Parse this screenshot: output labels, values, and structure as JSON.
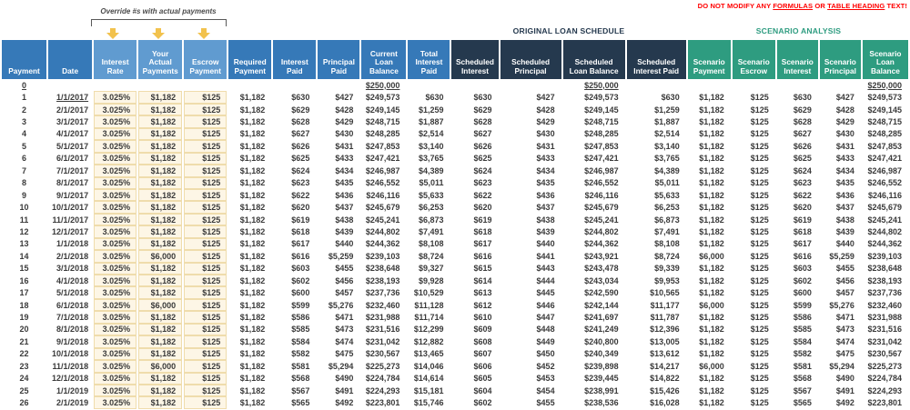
{
  "annotations": {
    "warning": {
      "prefix": "DO NOT MODIFY ANY ",
      "formulas": "FORMULAS",
      "middle": " OR ",
      "table_heading": "TABLE HEADING",
      "suffix": " TEXT!"
    },
    "override_note": "Override #s with actual payments",
    "override_arrow_icons": [
      "down-arrow-icon",
      "down-arrow-icon",
      "down-arrow-icon"
    ]
  },
  "sections": {
    "original": "ORIGINAL LOAN SCHEDULE",
    "scenario": "SCENARIO ANALYSIS"
  },
  "colors": {
    "header_blue": "#3679B8",
    "header_light_blue": "#609BD0",
    "header_navy": "#25394E",
    "header_teal": "#2E9C80",
    "highlight_bg": "#FDF6E6",
    "highlight_border": "#EFDCAC",
    "warning_red": "#FF0000",
    "arrow_gold": "#F2C24D"
  },
  "columns": [
    {
      "key": "payment",
      "label": "Payment",
      "group": "blue",
      "align": "center"
    },
    {
      "key": "date",
      "label": "Date",
      "group": "blue",
      "align": "right"
    },
    {
      "key": "interest-rate",
      "label": "Interest\nRate",
      "group": "lightblue",
      "align": "right"
    },
    {
      "key": "actual-payments",
      "label": "Your\nActual\nPayments",
      "group": "lightblue",
      "align": "right"
    },
    {
      "key": "escrow-payment",
      "label": "Escrow\nPayment",
      "group": "lightblue",
      "align": "right"
    },
    {
      "key": "required-payment",
      "label": "Required\nPayment",
      "group": "blue",
      "align": "right"
    },
    {
      "key": "interest-paid",
      "label": "Interest\nPaid",
      "group": "blue",
      "align": "right"
    },
    {
      "key": "principal-paid",
      "label": "Principal\nPaid",
      "group": "blue",
      "align": "right"
    },
    {
      "key": "current-loan-balance",
      "label": "Current\nLoan\nBalance",
      "group": "blue",
      "align": "right"
    },
    {
      "key": "total-interest-paid",
      "label": "Total\nInterest\nPaid",
      "group": "blue",
      "align": "right"
    },
    {
      "key": "scheduled-interest",
      "label": "Scheduled\nInterest",
      "group": "navy",
      "align": "right"
    },
    {
      "key": "scheduled-principal",
      "label": "Scheduled\nPrincipal",
      "group": "navy",
      "align": "right"
    },
    {
      "key": "scheduled-loan-balance",
      "label": "Scheduled\nLoan Balance",
      "group": "navy",
      "align": "right"
    },
    {
      "key": "scheduled-interest-paid",
      "label": "Scheduled\nInterest Paid",
      "group": "navy",
      "align": "right"
    },
    {
      "key": "scenario-payment",
      "label": "Scenario\nPayment",
      "group": "teal",
      "align": "right"
    },
    {
      "key": "scenario-escrow",
      "label": "Scenario\nEscrow",
      "group": "teal",
      "align": "right"
    },
    {
      "key": "scenario-interest",
      "label": "Scenario\nInterest",
      "group": "teal",
      "align": "right"
    },
    {
      "key": "scenario-principal",
      "label": "Scenario\nPrincipal",
      "group": "teal",
      "align": "right"
    },
    {
      "key": "scenario-loan-balance",
      "label": "Scenario\nLoan\nBalance",
      "group": "teal",
      "align": "right"
    }
  ],
  "rows": [
    [
      "0",
      "",
      "",
      "",
      "",
      "",
      "",
      "",
      "$250,000",
      "",
      "",
      "",
      "$250,000",
      "",
      "",
      "",
      "",
      "",
      "$250,000"
    ],
    [
      "1",
      "1/1/2017",
      "3.025%",
      "$1,182",
      "$125",
      "$1,182",
      "$630",
      "$427",
      "$249,573",
      "$630",
      "$630",
      "$427",
      "$249,573",
      "$630",
      "$1,182",
      "$125",
      "$630",
      "$427",
      "$249,573"
    ],
    [
      "2",
      "2/1/2017",
      "3.025%",
      "$1,182",
      "$125",
      "$1,182",
      "$629",
      "$428",
      "$249,145",
      "$1,259",
      "$629",
      "$428",
      "$249,145",
      "$1,259",
      "$1,182",
      "$125",
      "$629",
      "$428",
      "$249,145"
    ],
    [
      "3",
      "3/1/2017",
      "3.025%",
      "$1,182",
      "$125",
      "$1,182",
      "$628",
      "$429",
      "$248,715",
      "$1,887",
      "$628",
      "$429",
      "$248,715",
      "$1,887",
      "$1,182",
      "$125",
      "$628",
      "$429",
      "$248,715"
    ],
    [
      "4",
      "4/1/2017",
      "3.025%",
      "$1,182",
      "$125",
      "$1,182",
      "$627",
      "$430",
      "$248,285",
      "$2,514",
      "$627",
      "$430",
      "$248,285",
      "$2,514",
      "$1,182",
      "$125",
      "$627",
      "$430",
      "$248,285"
    ],
    [
      "5",
      "5/1/2017",
      "3.025%",
      "$1,182",
      "$125",
      "$1,182",
      "$626",
      "$431",
      "$247,853",
      "$3,140",
      "$626",
      "$431",
      "$247,853",
      "$3,140",
      "$1,182",
      "$125",
      "$626",
      "$431",
      "$247,853"
    ],
    [
      "6",
      "6/1/2017",
      "3.025%",
      "$1,182",
      "$125",
      "$1,182",
      "$625",
      "$433",
      "$247,421",
      "$3,765",
      "$625",
      "$433",
      "$247,421",
      "$3,765",
      "$1,182",
      "$125",
      "$625",
      "$433",
      "$247,421"
    ],
    [
      "7",
      "7/1/2017",
      "3.025%",
      "$1,182",
      "$125",
      "$1,182",
      "$624",
      "$434",
      "$246,987",
      "$4,389",
      "$624",
      "$434",
      "$246,987",
      "$4,389",
      "$1,182",
      "$125",
      "$624",
      "$434",
      "$246,987"
    ],
    [
      "8",
      "8/1/2017",
      "3.025%",
      "$1,182",
      "$125",
      "$1,182",
      "$623",
      "$435",
      "$246,552",
      "$5,011",
      "$623",
      "$435",
      "$246,552",
      "$5,011",
      "$1,182",
      "$125",
      "$623",
      "$435",
      "$246,552"
    ],
    [
      "9",
      "9/1/2017",
      "3.025%",
      "$1,182",
      "$125",
      "$1,182",
      "$622",
      "$436",
      "$246,116",
      "$5,633",
      "$622",
      "$436",
      "$246,116",
      "$5,633",
      "$1,182",
      "$125",
      "$622",
      "$436",
      "$246,116"
    ],
    [
      "10",
      "10/1/2017",
      "3.025%",
      "$1,182",
      "$125",
      "$1,182",
      "$620",
      "$437",
      "$245,679",
      "$6,253",
      "$620",
      "$437",
      "$245,679",
      "$6,253",
      "$1,182",
      "$125",
      "$620",
      "$437",
      "$245,679"
    ],
    [
      "11",
      "11/1/2017",
      "3.025%",
      "$1,182",
      "$125",
      "$1,182",
      "$619",
      "$438",
      "$245,241",
      "$6,873",
      "$619",
      "$438",
      "$245,241",
      "$6,873",
      "$1,182",
      "$125",
      "$619",
      "$438",
      "$245,241"
    ],
    [
      "12",
      "12/1/2017",
      "3.025%",
      "$1,182",
      "$125",
      "$1,182",
      "$618",
      "$439",
      "$244,802",
      "$7,491",
      "$618",
      "$439",
      "$244,802",
      "$7,491",
      "$1,182",
      "$125",
      "$618",
      "$439",
      "$244,802"
    ],
    [
      "13",
      "1/1/2018",
      "3.025%",
      "$1,182",
      "$125",
      "$1,182",
      "$617",
      "$440",
      "$244,362",
      "$8,108",
      "$617",
      "$440",
      "$244,362",
      "$8,108",
      "$1,182",
      "$125",
      "$617",
      "$440",
      "$244,362"
    ],
    [
      "14",
      "2/1/2018",
      "3.025%",
      "$6,000",
      "$125",
      "$1,182",
      "$616",
      "$5,259",
      "$239,103",
      "$8,724",
      "$616",
      "$441",
      "$243,921",
      "$8,724",
      "$6,000",
      "$125",
      "$616",
      "$5,259",
      "$239,103"
    ],
    [
      "15",
      "3/1/2018",
      "3.025%",
      "$1,182",
      "$125",
      "$1,182",
      "$603",
      "$455",
      "$238,648",
      "$9,327",
      "$615",
      "$443",
      "$243,478",
      "$9,339",
      "$1,182",
      "$125",
      "$603",
      "$455",
      "$238,648"
    ],
    [
      "16",
      "4/1/2018",
      "3.025%",
      "$1,182",
      "$125",
      "$1,182",
      "$602",
      "$456",
      "$238,193",
      "$9,928",
      "$614",
      "$444",
      "$243,034",
      "$9,953",
      "$1,182",
      "$125",
      "$602",
      "$456",
      "$238,193"
    ],
    [
      "17",
      "5/1/2018",
      "3.025%",
      "$1,182",
      "$125",
      "$1,182",
      "$600",
      "$457",
      "$237,736",
      "$10,529",
      "$613",
      "$445",
      "$242,590",
      "$10,565",
      "$1,182",
      "$125",
      "$600",
      "$457",
      "$237,736"
    ],
    [
      "18",
      "6/1/2018",
      "3.025%",
      "$6,000",
      "$125",
      "$1,182",
      "$599",
      "$5,276",
      "$232,460",
      "$11,128",
      "$612",
      "$446",
      "$242,144",
      "$11,177",
      "$6,000",
      "$125",
      "$599",
      "$5,276",
      "$232,460"
    ],
    [
      "19",
      "7/1/2018",
      "3.025%",
      "$1,182",
      "$125",
      "$1,182",
      "$586",
      "$471",
      "$231,988",
      "$11,714",
      "$610",
      "$447",
      "$241,697",
      "$11,787",
      "$1,182",
      "$125",
      "$586",
      "$471",
      "$231,988"
    ],
    [
      "20",
      "8/1/2018",
      "3.025%",
      "$1,182",
      "$125",
      "$1,182",
      "$585",
      "$473",
      "$231,516",
      "$12,299",
      "$609",
      "$448",
      "$241,249",
      "$12,396",
      "$1,182",
      "$125",
      "$585",
      "$473",
      "$231,516"
    ],
    [
      "21",
      "9/1/2018",
      "3.025%",
      "$1,182",
      "$125",
      "$1,182",
      "$584",
      "$474",
      "$231,042",
      "$12,882",
      "$608",
      "$449",
      "$240,800",
      "$13,005",
      "$1,182",
      "$125",
      "$584",
      "$474",
      "$231,042"
    ],
    [
      "22",
      "10/1/2018",
      "3.025%",
      "$1,182",
      "$125",
      "$1,182",
      "$582",
      "$475",
      "$230,567",
      "$13,465",
      "$607",
      "$450",
      "$240,349",
      "$13,612",
      "$1,182",
      "$125",
      "$582",
      "$475",
      "$230,567"
    ],
    [
      "23",
      "11/1/2018",
      "3.025%",
      "$6,000",
      "$125",
      "$1,182",
      "$581",
      "$5,294",
      "$225,273",
      "$14,046",
      "$606",
      "$452",
      "$239,898",
      "$14,217",
      "$6,000",
      "$125",
      "$581",
      "$5,294",
      "$225,273"
    ],
    [
      "24",
      "12/1/2018",
      "3.025%",
      "$1,182",
      "$125",
      "$1,182",
      "$568",
      "$490",
      "$224,784",
      "$14,614",
      "$605",
      "$453",
      "$239,445",
      "$14,822",
      "$1,182",
      "$125",
      "$568",
      "$490",
      "$224,784"
    ],
    [
      "25",
      "1/1/2019",
      "3.025%",
      "$1,182",
      "$125",
      "$1,182",
      "$567",
      "$491",
      "$224,293",
      "$15,181",
      "$604",
      "$454",
      "$238,991",
      "$15,426",
      "$1,182",
      "$125",
      "$567",
      "$491",
      "$224,293"
    ],
    [
      "26",
      "2/1/2019",
      "3.025%",
      "$1,182",
      "$125",
      "$1,182",
      "$565",
      "$492",
      "$223,801",
      "$15,746",
      "$602",
      "$455",
      "$238,536",
      "$16,028",
      "$1,182",
      "$125",
      "$565",
      "$492",
      "$223,801"
    ]
  ]
}
